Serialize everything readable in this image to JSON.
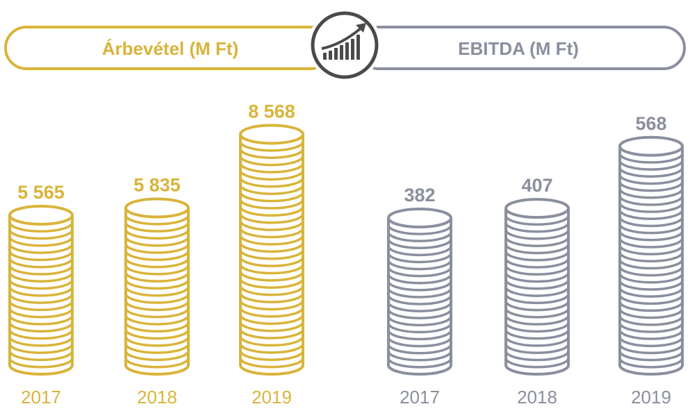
{
  "colors": {
    "revenue": "#D9B43A",
    "ebitda": "#8A8F9E",
    "icon": "#4A4A4A",
    "background": "#FFFFFF"
  },
  "banners": {
    "revenue_title": "Árbevétel (M Ft)",
    "ebitda_title": "EBITDA (M Ft)",
    "center_icon": "growth-chart-icon"
  },
  "chart_data": [
    {
      "type": "bar",
      "title": "Árbevétel (M Ft)",
      "categories": [
        "2017",
        "2018",
        "2019"
      ],
      "values": [
        5565,
        5835,
        8568
      ],
      "value_labels": [
        "5 565",
        "5 835",
        "8 568"
      ],
      "color": "#D9B43A",
      "style": "coin-stacks",
      "grid": false,
      "legend": "none"
    },
    {
      "type": "bar",
      "title": "EBITDA (M Ft)",
      "categories": [
        "2017",
        "2018",
        "2019"
      ],
      "values": [
        382,
        407,
        568
      ],
      "value_labels": [
        "382",
        "407",
        "568"
      ],
      "color": "#8A8F9E",
      "style": "coin-stacks",
      "grid": false,
      "legend": "none"
    }
  ]
}
